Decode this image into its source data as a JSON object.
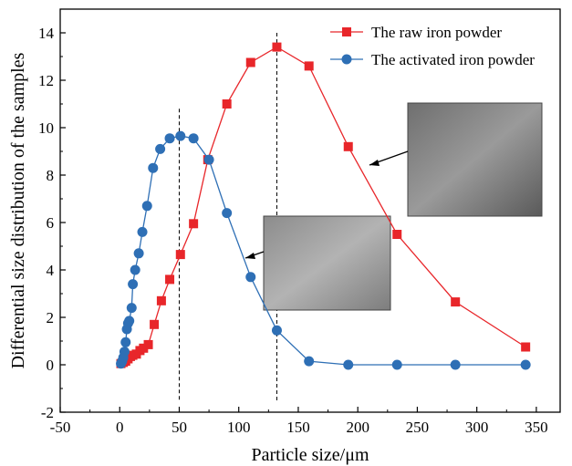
{
  "chart_data": {
    "type": "line",
    "xlabel": "Particle size/μm",
    "ylabel": "Differential size distribution of the samples",
    "xlim": [
      -50,
      370
    ],
    "ylim": [
      -2,
      15
    ],
    "xticks": [
      -50,
      0,
      50,
      100,
      150,
      200,
      250,
      300,
      350
    ],
    "yticks": [
      -2,
      0,
      2,
      4,
      6,
      8,
      10,
      12,
      14
    ],
    "legend_position": "top-right",
    "grid": false,
    "series": [
      {
        "name": "The raw iron powder",
        "color": "#e8262a",
        "marker": "square",
        "points": [
          [
            1,
            0.05
          ],
          [
            3,
            0.1
          ],
          [
            5,
            0.15
          ],
          [
            7,
            0.25
          ],
          [
            9,
            0.35
          ],
          [
            11,
            0.4
          ],
          [
            14,
            0.45
          ],
          [
            17,
            0.6
          ],
          [
            20,
            0.7
          ],
          [
            24,
            0.85
          ],
          [
            29,
            1.7
          ],
          [
            35,
            2.7
          ],
          [
            42,
            3.6
          ],
          [
            51,
            4.65
          ],
          [
            62,
            5.95
          ],
          [
            74,
            8.65
          ],
          [
            90,
            11.0
          ],
          [
            110,
            12.75
          ],
          [
            132,
            13.4
          ],
          [
            159,
            12.6
          ],
          [
            192,
            9.2
          ],
          [
            233,
            5.5
          ],
          [
            282,
            2.65
          ],
          [
            341,
            0.75
          ]
        ]
      },
      {
        "name": "The activated iron powder",
        "color": "#2e6fb5",
        "marker": "circle",
        "points": [
          [
            1,
            0.05
          ],
          [
            2,
            0.15
          ],
          [
            3,
            0.3
          ],
          [
            4,
            0.55
          ],
          [
            5,
            0.95
          ],
          [
            6,
            1.5
          ],
          [
            7,
            1.75
          ],
          [
            8,
            1.85
          ],
          [
            10,
            2.4
          ],
          [
            11,
            3.4
          ],
          [
            13,
            4.0
          ],
          [
            16,
            4.7
          ],
          [
            19,
            5.6
          ],
          [
            23,
            6.7
          ],
          [
            28,
            8.3
          ],
          [
            34,
            9.1
          ],
          [
            42,
            9.55
          ],
          [
            51,
            9.65
          ],
          [
            62,
            9.55
          ],
          [
            75,
            8.65
          ],
          [
            90,
            6.4
          ],
          [
            110,
            3.7
          ],
          [
            132,
            1.45
          ],
          [
            159,
            0.15
          ],
          [
            192,
            0.0
          ],
          [
            233,
            0.0
          ],
          [
            282,
            0.0
          ],
          [
            341,
            0.0
          ]
        ]
      }
    ],
    "reference_lines_x": [
      50,
      132
    ]
  }
}
